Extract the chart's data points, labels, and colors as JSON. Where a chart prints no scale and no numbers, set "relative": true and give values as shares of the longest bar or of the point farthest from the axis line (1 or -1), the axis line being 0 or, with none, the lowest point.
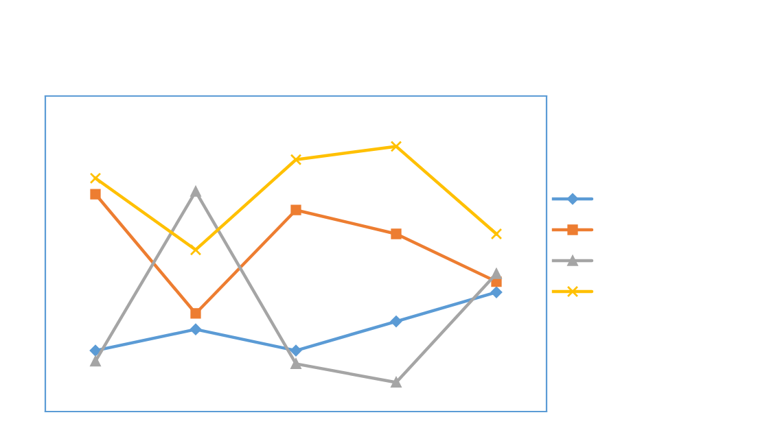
{
  "chart_data": {
    "type": "line",
    "relative": true,
    "categories": [
      null,
      null,
      null,
      null,
      null
    ],
    "series": [
      {
        "color": "#5b9bd5",
        "marker": "diamond",
        "values": [
          0.23,
          0.31,
          0.23,
          0.34,
          0.45
        ]
      },
      {
        "color": "#ed7d31",
        "marker": "square",
        "values": [
          0.82,
          0.37,
          0.76,
          0.67,
          0.49
        ]
      },
      {
        "color": "#a5a5a5",
        "marker": "triangle",
        "values": [
          0.19,
          0.83,
          0.18,
          0.11,
          0.52
        ]
      },
      {
        "color": "#ffc000",
        "marker": "cross",
        "values": [
          0.88,
          0.61,
          0.95,
          1,
          0.67
        ]
      }
    ],
    "grid": false
  }
}
